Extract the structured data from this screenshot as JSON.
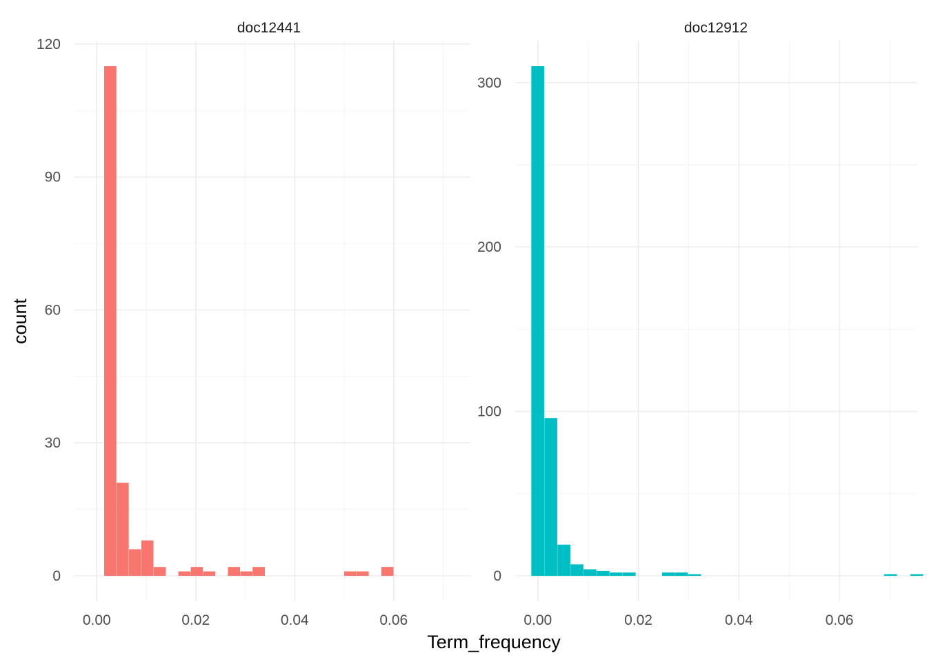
{
  "chart_data": {
    "type": "bar",
    "xlabel": "Term_frequency",
    "ylabel": "count",
    "grid": true,
    "legend": "none",
    "panels": [
      {
        "name": "doc12441",
        "color": "#F8766D",
        "xlim": [
          -0.0045,
          0.0755
        ],
        "ylim": [
          -5.75,
          120.75
        ],
        "x_ticks": [
          0.0,
          0.02,
          0.04,
          0.06
        ],
        "x_tick_labels": [
          "0.00",
          "0.02",
          "0.04",
          "0.06"
        ],
        "y_ticks": [
          0,
          30,
          60,
          90,
          120
        ],
        "y_tick_labels": [
          "0",
          "30",
          "60",
          "90",
          "120"
        ],
        "bin_width": 0.0025,
        "bins": [
          {
            "x0": 0.0015,
            "x1": 0.004,
            "count": 115
          },
          {
            "x0": 0.004,
            "x1": 0.0065,
            "count": 21
          },
          {
            "x0": 0.0065,
            "x1": 0.009,
            "count": 6
          },
          {
            "x0": 0.009,
            "x1": 0.0115,
            "count": 8
          },
          {
            "x0": 0.0115,
            "x1": 0.014,
            "count": 2
          },
          {
            "x0": 0.0165,
            "x1": 0.019,
            "count": 1
          },
          {
            "x0": 0.019,
            "x1": 0.0215,
            "count": 2
          },
          {
            "x0": 0.0215,
            "x1": 0.024,
            "count": 1
          },
          {
            "x0": 0.0265,
            "x1": 0.029,
            "count": 2
          },
          {
            "x0": 0.029,
            "x1": 0.0315,
            "count": 1
          },
          {
            "x0": 0.0315,
            "x1": 0.034,
            "count": 2
          },
          {
            "x0": 0.05,
            "x1": 0.0525,
            "count": 1
          },
          {
            "x0": 0.0525,
            "x1": 0.055,
            "count": 1
          },
          {
            "x0": 0.0575,
            "x1": 0.06,
            "count": 2
          }
        ]
      },
      {
        "name": "doc12912",
        "color": "#00BFC4",
        "xlim": [
          -0.0045,
          0.0755
        ],
        "ylim": [
          -15.5,
          325.5
        ],
        "x_ticks": [
          0.0,
          0.02,
          0.04,
          0.06
        ],
        "x_tick_labels": [
          "0.00",
          "0.02",
          "0.04",
          "0.06"
        ],
        "y_ticks": [
          0,
          100,
          200,
          300
        ],
        "y_tick_labels": [
          "0",
          "100",
          "200",
          "300"
        ],
        "bin_width": 0.0026,
        "bins": [
          {
            "x0": -0.0013,
            "x1": 0.0013,
            "count": 310
          },
          {
            "x0": 0.0013,
            "x1": 0.0039,
            "count": 96
          },
          {
            "x0": 0.0039,
            "x1": 0.0065,
            "count": 19
          },
          {
            "x0": 0.0065,
            "x1": 0.0091,
            "count": 7
          },
          {
            "x0": 0.0091,
            "x1": 0.0117,
            "count": 4
          },
          {
            "x0": 0.0117,
            "x1": 0.0143,
            "count": 3
          },
          {
            "x0": 0.0143,
            "x1": 0.0169,
            "count": 2
          },
          {
            "x0": 0.0169,
            "x1": 0.0195,
            "count": 2
          },
          {
            "x0": 0.0247,
            "x1": 0.0273,
            "count": 2
          },
          {
            "x0": 0.0273,
            "x1": 0.0299,
            "count": 2
          },
          {
            "x0": 0.0299,
            "x1": 0.0325,
            "count": 1
          },
          {
            "x0": 0.0689,
            "x1": 0.0715,
            "count": 1
          },
          {
            "x0": 0.0741,
            "x1": 0.0767,
            "count": 1
          }
        ]
      }
    ]
  }
}
